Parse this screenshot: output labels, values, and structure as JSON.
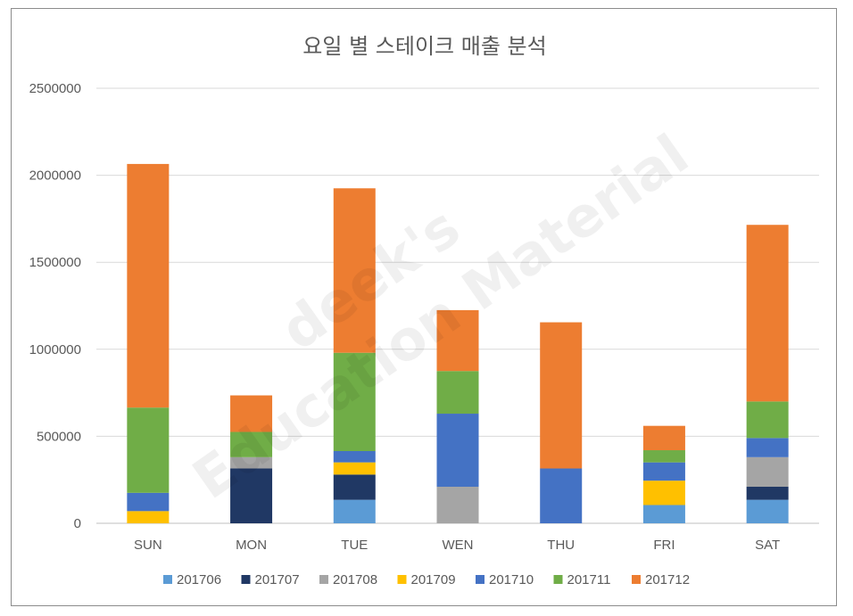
{
  "chart_data": {
    "type": "bar",
    "stacked": true,
    "title": "요일 별 스테이크 매출 분석",
    "categories": [
      "SUN",
      "MON",
      "TUE",
      "WEN",
      "THU",
      "FRI",
      "SAT"
    ],
    "series": [
      {
        "name": "201706",
        "color": "#5b9bd5",
        "values": [
          0,
          0,
          135000,
          0,
          0,
          105000,
          135000
        ]
      },
      {
        "name": "201707",
        "color": "#203864",
        "values": [
          0,
          315000,
          145000,
          0,
          0,
          0,
          75000
        ]
      },
      {
        "name": "201708",
        "color": "#a5a5a5",
        "values": [
          0,
          65000,
          0,
          210000,
          0,
          0,
          170000
        ]
      },
      {
        "name": "201709",
        "color": "#ffc000",
        "values": [
          70000,
          0,
          70000,
          0,
          0,
          140000,
          0
        ]
      },
      {
        "name": "201710",
        "color": "#4472c4",
        "values": [
          105000,
          0,
          65000,
          420000,
          315000,
          105000,
          110000
        ]
      },
      {
        "name": "201711",
        "color": "#70ad47",
        "values": [
          490000,
          145000,
          565000,
          245000,
          0,
          70000,
          210000
        ]
      },
      {
        "name": "201712",
        "color": "#ed7d31",
        "values": [
          1400000,
          210000,
          945000,
          350000,
          840000,
          140000,
          1015000
        ]
      }
    ],
    "yticks": [
      "0",
      "500000",
      "1000000",
      "1500000",
      "2000000",
      "2500000"
    ],
    "ylim": [
      0,
      2500000
    ],
    "grid": true,
    "legend_position": "bottom"
  },
  "watermark": {
    "line1": "deek's",
    "line2": "Education Material"
  }
}
